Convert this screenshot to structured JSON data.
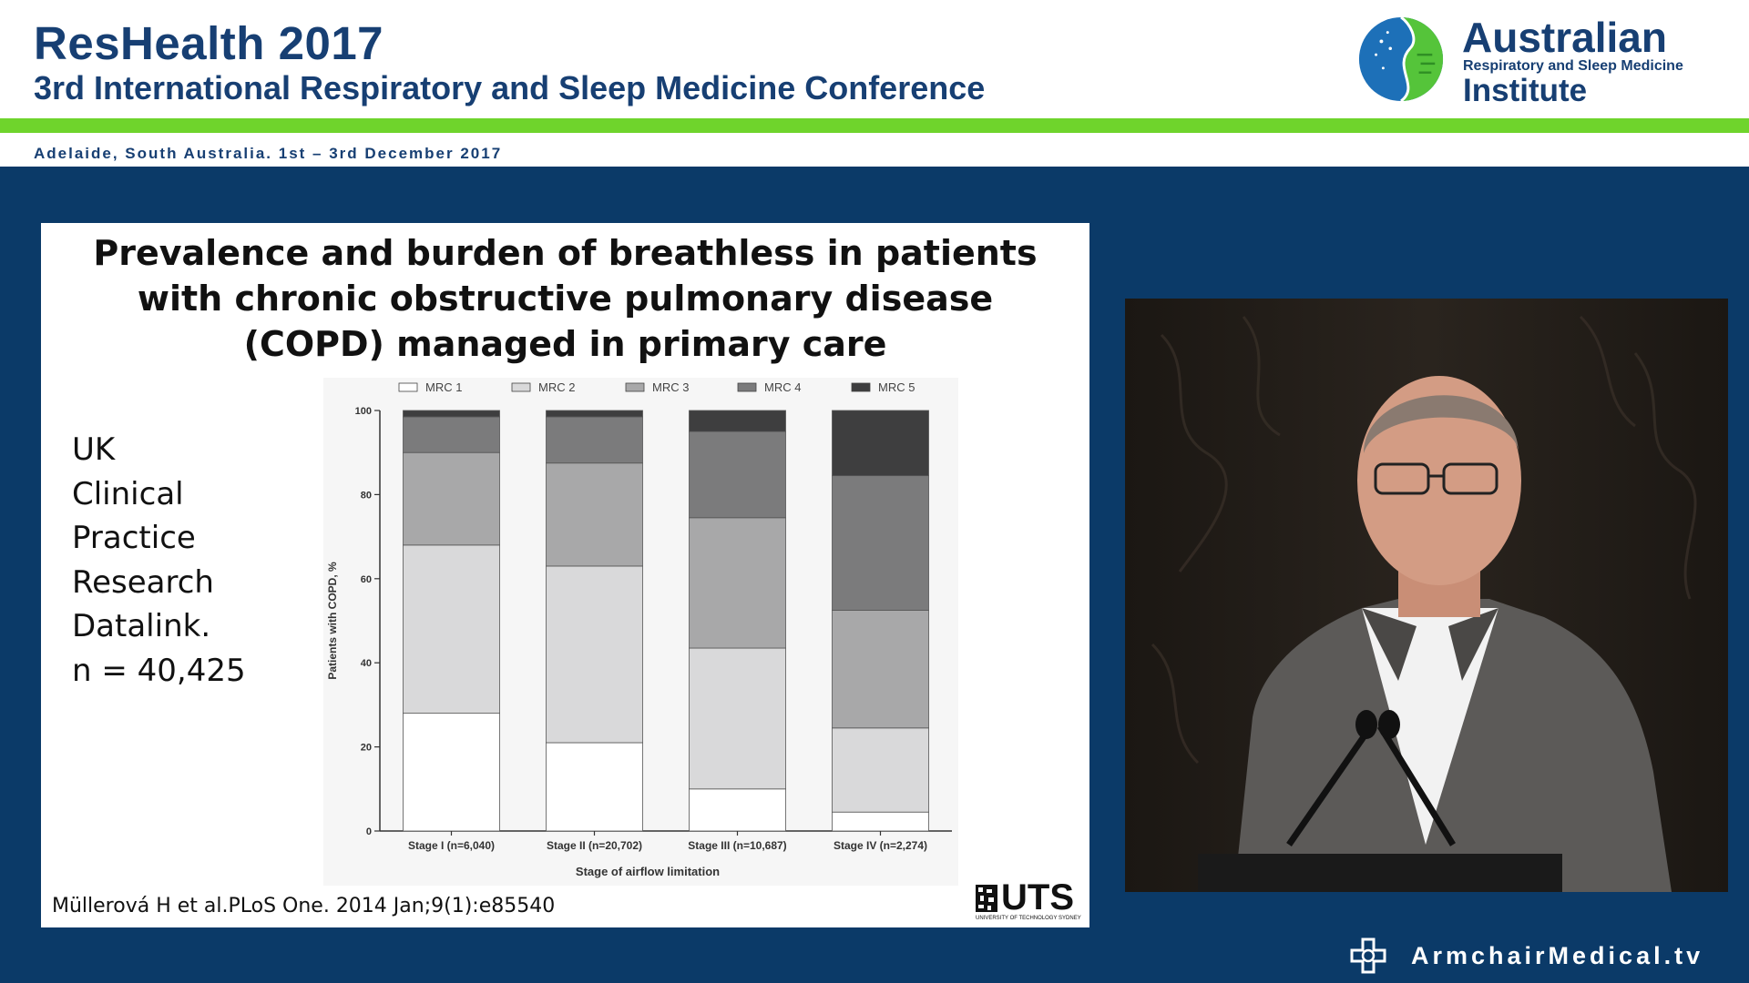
{
  "header": {
    "title": "ResHealth 2017",
    "subtitle": "3rd International Respiratory and Sleep Medicine Conference",
    "location": "Adelaide, South Australia. 1st – 3rd December 2017",
    "logo": {
      "line1": "Australian",
      "line2": "Respiratory and Sleep Medicine",
      "line3": "Institute",
      "icon": "globe-lung-logo-icon"
    }
  },
  "slide": {
    "title_lines": [
      "Prevalence and burden of breathless in patients",
      "with chronic obstructive pulmonary disease",
      "(COPD) managed in primary care"
    ],
    "side_lines": [
      "UK",
      "Clinical",
      "Practice",
      "Research",
      "Datalink.",
      "n = 40,425"
    ],
    "citation": "Müllerová H et al.PLoS One. 2014 Jan;9(1):e85540",
    "uts_logo": {
      "text": "UTS",
      "sub": "UNIVERSITY OF TECHNOLOGY SYDNEY"
    }
  },
  "chart_data": {
    "type": "bar",
    "stacked": true,
    "categories": [
      "Stage I (n=6,040)",
      "Stage II (n=20,702)",
      "Stage III (n=10,687)",
      "Stage IV (n=2,274)"
    ],
    "series": [
      {
        "name": "MRC 1",
        "values": [
          28,
          21,
          10,
          4.5
        ],
        "color": "#ffffff"
      },
      {
        "name": "MRC 2",
        "values": [
          40,
          42,
          33.5,
          20
        ],
        "color": "#d9d9da"
      },
      {
        "name": "MRC 3",
        "values": [
          22,
          24.5,
          31,
          28
        ],
        "color": "#a8a8a9"
      },
      {
        "name": "MRC 4",
        "values": [
          8.5,
          11,
          20.5,
          32
        ],
        "color": "#7b7b7c"
      },
      {
        "name": "MRC 5",
        "values": [
          1.5,
          1.5,
          5,
          15.5
        ],
        "color": "#3e3e3f"
      }
    ],
    "xlabel": "Stage of airflow limitation",
    "ylabel": "Patients with COPD, %",
    "ylim": [
      0,
      100
    ],
    "yticks": [
      0,
      20,
      40,
      60,
      80,
      100
    ],
    "legend_position": "top",
    "grid": false
  },
  "video": {
    "description_icon": "speaker-video-icon"
  },
  "footer": {
    "brand": "ArmchairMedical.tv",
    "icon": "medical-cross-icon"
  }
}
